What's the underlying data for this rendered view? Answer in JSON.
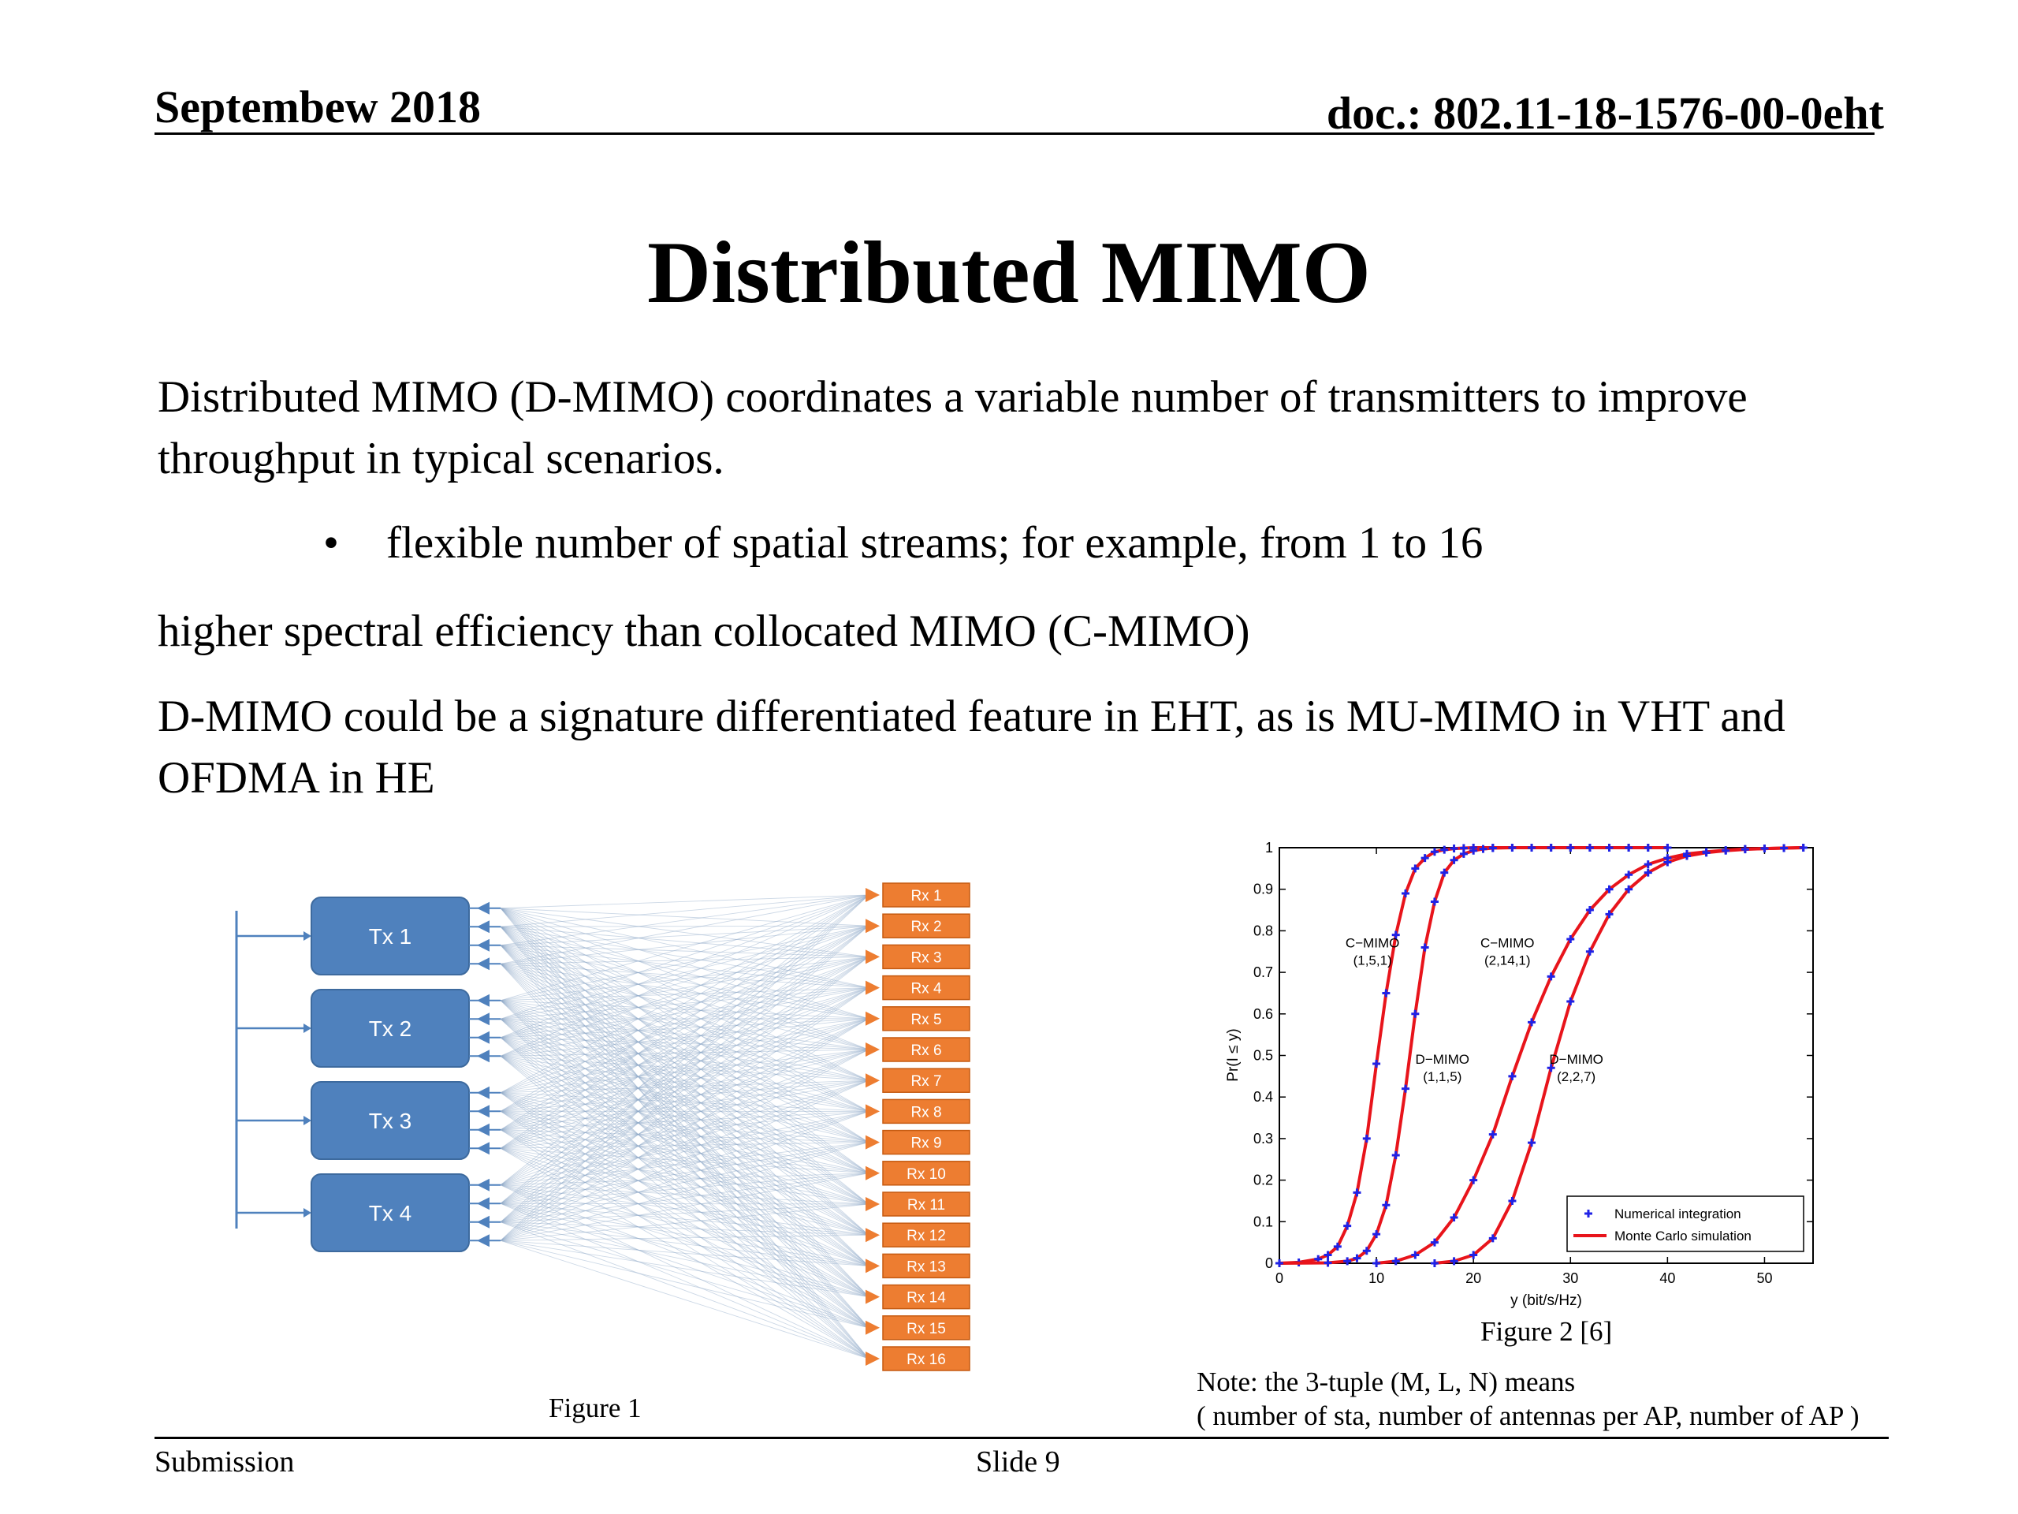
{
  "header": {
    "date": "Septembew 2018",
    "doc": "doc.: 802.11-18-1576-00-0eht"
  },
  "title": "Distributed MIMO",
  "body": {
    "p1": "Distributed MIMO (D-MIMO) coordinates a variable number of transmitters to improve throughput in typical scenarios.",
    "bullet": "flexible number of spatial streams; for example, from 1 to 16",
    "bullet_glyph": "•",
    "p2": "higher spectral efficiency than collocated MIMO (C-MIMO)",
    "p3": "D-MIMO could be a signature differentiated feature in EHT, as is MU-MIMO in VHT and OFDMA in HE"
  },
  "figure1": {
    "caption": "Figure 1",
    "tx": [
      "Tx 1",
      "Tx 2",
      "Tx 3",
      "Tx 4"
    ],
    "rx": [
      "Rx 1",
      "Rx 2",
      "Rx 3",
      "Rx 4",
      "Rx 5",
      "Rx 6",
      "Rx 7",
      "Rx 8",
      "Rx 9",
      "Rx 10",
      "Rx 11",
      "Rx 12",
      "Rx 13",
      "Rx 14",
      "Rx 15",
      "Rx 16"
    ],
    "colors": {
      "tx": "#4f81bd",
      "rx": "#ed7d31",
      "lines": "#8fa9c8"
    }
  },
  "figure2": {
    "caption": "Figure 2 [6]",
    "note_line1": "Note: the 3-tuple (M, L, N) means",
    "note_line2": "( number of sta, number of antennas per AP, number of AP )"
  },
  "chart_data": {
    "type": "line",
    "xlabel": "y (bit/s/Hz)",
    "ylabel": "Pr(I ≤ y)",
    "xlim": [
      0,
      55
    ],
    "ylim": [
      0,
      1
    ],
    "xticks": [
      0,
      10,
      20,
      30,
      40,
      50
    ],
    "yticks": [
      0,
      0.1,
      0.2,
      0.3,
      0.4,
      0.5,
      0.6,
      0.7,
      0.8,
      0.9,
      1
    ],
    "legend": {
      "placement": "bottom-right",
      "entries": [
        "Numerical integration",
        "Monte Carlo simulation"
      ]
    },
    "colors": {
      "monte_carlo": "#e8141b",
      "numerical": "#1f22e6"
    },
    "annotations": [
      {
        "lines": [
          "C−MIMO",
          "(1,5,1)"
        ],
        "x": 9.6,
        "y": 0.76
      },
      {
        "lines": [
          "C−MIMO",
          "(2,14,1)"
        ],
        "x": 23.5,
        "y": 0.76
      },
      {
        "lines": [
          "D−MIMO",
          "(1,1,5)"
        ],
        "x": 16.8,
        "y": 0.48
      },
      {
        "lines": [
          "D−MIMO",
          "(2,2,7)"
        ],
        "x": 30.6,
        "y": 0.48
      }
    ],
    "series": [
      {
        "id": "c1",
        "x": [
          0,
          2,
          4,
          5,
          6,
          7,
          8,
          9,
          10,
          11,
          12,
          13,
          14,
          15,
          16,
          17,
          18,
          19,
          20,
          22,
          24,
          26,
          28,
          30,
          32,
          34,
          36,
          38,
          40
        ],
        "y": [
          0,
          0.002,
          0.01,
          0.02,
          0.04,
          0.09,
          0.17,
          0.3,
          0.48,
          0.65,
          0.79,
          0.89,
          0.95,
          0.975,
          0.99,
          0.995,
          0.998,
          0.999,
          1,
          1,
          1,
          1,
          1,
          1,
          1,
          1,
          1,
          1,
          1
        ]
      },
      {
        "id": "d1",
        "x": [
          0,
          5,
          7,
          8,
          9,
          10,
          11,
          12,
          13,
          14,
          15,
          16,
          17,
          18,
          19,
          20,
          21,
          22,
          24,
          26,
          28,
          30,
          32,
          34,
          36,
          38,
          40
        ],
        "y": [
          0,
          0.001,
          0.005,
          0.012,
          0.03,
          0.07,
          0.14,
          0.26,
          0.42,
          0.6,
          0.76,
          0.87,
          0.94,
          0.97,
          0.985,
          0.993,
          0.997,
          0.999,
          1,
          1,
          1,
          1,
          1,
          1,
          1,
          1,
          1
        ]
      },
      {
        "id": "c2",
        "x": [
          10,
          12,
          14,
          16,
          18,
          20,
          22,
          24,
          26,
          28,
          30,
          32,
          34,
          36,
          38,
          40,
          42,
          44,
          46,
          48,
          50,
          52,
          54
        ],
        "y": [
          0,
          0.005,
          0.02,
          0.05,
          0.11,
          0.2,
          0.31,
          0.45,
          0.58,
          0.69,
          0.78,
          0.85,
          0.9,
          0.935,
          0.96,
          0.975,
          0.985,
          0.99,
          0.994,
          0.997,
          0.998,
          0.999,
          1
        ]
      },
      {
        "id": "d2",
        "x": [
          16,
          18,
          20,
          22,
          24,
          26,
          28,
          30,
          32,
          34,
          36,
          38,
          40,
          42,
          44,
          46,
          48,
          50,
          52,
          54
        ],
        "y": [
          0,
          0.005,
          0.02,
          0.06,
          0.15,
          0.29,
          0.47,
          0.63,
          0.75,
          0.84,
          0.9,
          0.94,
          0.965,
          0.98,
          0.988,
          0.993,
          0.996,
          0.998,
          0.999,
          1
        ]
      }
    ]
  },
  "footer": {
    "left": "Submission",
    "center": "Slide 9"
  }
}
